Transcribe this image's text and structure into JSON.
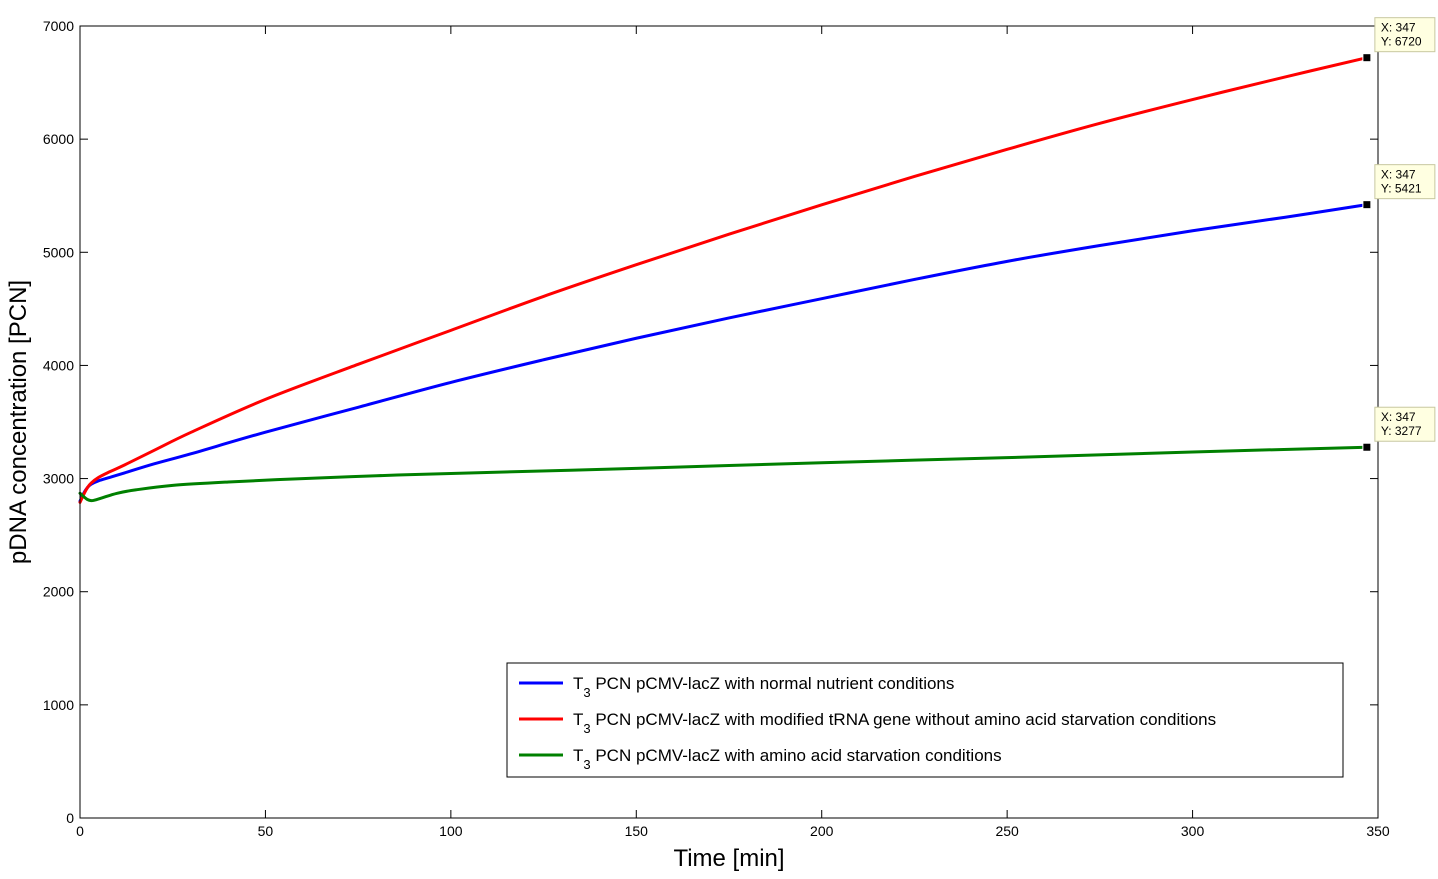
{
  "chart_data": {
    "type": "line",
    "xlabel": "Time [min]",
    "ylabel": "pDNA concentration [PCN]",
    "xlim": [
      0,
      350
    ],
    "ylim": [
      0,
      7000
    ],
    "xticks": [
      0,
      50,
      100,
      150,
      200,
      250,
      300,
      350
    ],
    "yticks": [
      0,
      1000,
      2000,
      3000,
      4000,
      5000,
      6000,
      7000
    ],
    "grid": false,
    "legend_position": "bottom-right",
    "series": [
      {
        "name": "T3 PCN pCMV-lacZ with normal nutrient conditions",
        "legend_parts": [
          "T",
          "3",
          " PCN pCMV-lacZ with normal nutrient conditions"
        ],
        "color": "#0000ff",
        "x": [
          0,
          1,
          2,
          3,
          5,
          8,
          12,
          20,
          30,
          50,
          75,
          100,
          125,
          150,
          175,
          200,
          225,
          250,
          275,
          300,
          325,
          347
        ],
        "y": [
          2800,
          2870,
          2920,
          2950,
          2980,
          3010,
          3050,
          3130,
          3220,
          3410,
          3630,
          3850,
          4050,
          4240,
          4420,
          4590,
          4760,
          4920,
          5060,
          5190,
          5310,
          5421
        ]
      },
      {
        "name": "T3 PCN pCMV-lacZ with modified tRNA gene without amino acid starvation conditions",
        "legend_parts": [
          "T",
          "3",
          " PCN pCMV-lacZ with modified tRNA gene without amino acid starvation conditions"
        ],
        "color": "#ff0000",
        "x": [
          0,
          1,
          2,
          3,
          5,
          8,
          12,
          20,
          30,
          50,
          75,
          100,
          125,
          150,
          175,
          200,
          225,
          250,
          275,
          300,
          325,
          347
        ],
        "y": [
          2790,
          2860,
          2920,
          2960,
          3010,
          3060,
          3120,
          3250,
          3410,
          3700,
          4010,
          4310,
          4610,
          4890,
          5160,
          5420,
          5670,
          5910,
          6140,
          6350,
          6550,
          6720
        ]
      },
      {
        "name": "T3 PCN pCMV-lacZ with amino acid starvation conditions",
        "legend_parts": [
          "T",
          "3",
          " PCN pCMV-lacZ with amino acid starvation conditions"
        ],
        "color": "#008000",
        "x": [
          0,
          1,
          2,
          3,
          4,
          6,
          10,
          15,
          25,
          40,
          60,
          80,
          100,
          150,
          200,
          250,
          300,
          347
        ],
        "y": [
          2870,
          2840,
          2815,
          2805,
          2810,
          2830,
          2870,
          2900,
          2940,
          2970,
          3000,
          3025,
          3045,
          3090,
          3140,
          3185,
          3235,
          3277
        ]
      }
    ],
    "annotations": [
      {
        "x": 347,
        "y": 6720,
        "text_x": "X: 347",
        "text_y": "Y: 6720"
      },
      {
        "x": 347,
        "y": 5421,
        "text_x": "X: 347",
        "text_y": "Y: 5421"
      },
      {
        "x": 347,
        "y": 3277,
        "text_x": "X: 347",
        "text_y": "Y: 3277"
      }
    ]
  }
}
